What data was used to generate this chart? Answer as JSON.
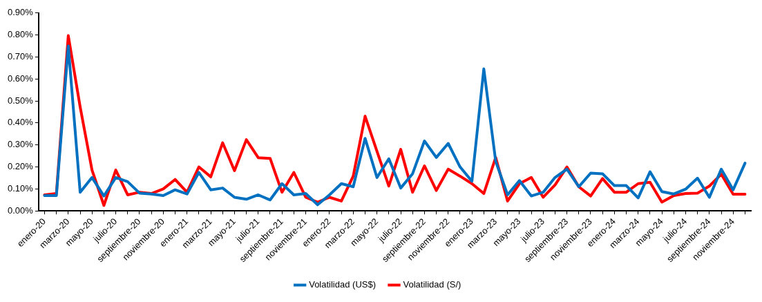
{
  "chart_data": {
    "type": "line",
    "categories": [
      "enero-20",
      null,
      "marzo-20",
      null,
      "mayo-20",
      null,
      "julio-20",
      null,
      "septiembre-20",
      null,
      "noviembre-20",
      null,
      "enero-21",
      null,
      "marzo-21",
      null,
      "mayo-21",
      null,
      "julio-21",
      null,
      "septiembre-21",
      null,
      "noviembre-21",
      null,
      "enero-22",
      null,
      "marzo-22",
      null,
      "mayo-22",
      null,
      "julio-22",
      null,
      "septiembre-22",
      null,
      "noviembre-22",
      null,
      "enero-23",
      null,
      "marzo-23",
      null,
      "mayo-23",
      null,
      "julio-23",
      null,
      "septiembre-23",
      null,
      "noviembre-23",
      null,
      "enero-24",
      null,
      "marzo-24",
      null,
      "mayo-24",
      null,
      "julio-24",
      null,
      "septiembre-24",
      null,
      "noviembre-24",
      null
    ],
    "series": [
      {
        "name": "Volatilidad (US$)",
        "color": "#0070c0",
        "values": [
          0.07,
          0.07,
          0.75,
          0.085,
          0.152,
          0.068,
          0.152,
          0.133,
          0.081,
          0.077,
          0.07,
          0.096,
          0.077,
          0.175,
          0.096,
          0.104,
          0.062,
          0.053,
          0.073,
          0.05,
          0.124,
          0.073,
          0.079,
          0.028,
          0.073,
          0.124,
          0.11,
          0.33,
          0.152,
          0.237,
          0.104,
          0.169,
          0.318,
          0.243,
          0.307,
          0.2,
          0.135,
          0.646,
          0.226,
          0.073,
          0.138,
          0.068,
          0.085,
          0.152,
          0.19,
          0.11,
          0.172,
          0.169,
          0.115,
          0.115,
          0.059,
          0.178,
          0.088,
          0.077,
          0.099,
          0.149,
          0.062,
          0.19,
          0.096,
          0.217
        ]
      },
      {
        "name": "Volatilidad (S/)",
        "color": "#ff0000",
        "values": [
          0.073,
          0.079,
          0.797,
          0.473,
          0.186,
          0.025,
          0.186,
          0.073,
          0.085,
          0.079,
          0.1,
          0.143,
          0.085,
          0.2,
          0.155,
          0.31,
          0.183,
          0.324,
          0.242,
          0.239,
          0.085,
          0.175,
          0.062,
          0.04,
          0.062,
          0.045,
          0.158,
          0.431,
          0.271,
          0.113,
          0.28,
          0.085,
          0.205,
          0.093,
          0.19,
          0.158,
          0.124,
          0.079,
          0.243,
          0.045,
          0.124,
          0.152,
          0.062,
          0.118,
          0.2,
          0.11,
          0.068,
          0.147,
          0.085,
          0.085,
          0.124,
          0.13,
          0.04,
          0.07,
          0.079,
          0.081,
          0.113,
          0.167,
          0.076,
          0.076
        ]
      }
    ],
    "ylim": [
      0,
      0.9
    ],
    "yticks": [
      {
        "value": 0,
        "label": "0.00%"
      },
      {
        "value": 0.1,
        "label": "0.10%"
      },
      {
        "value": 0.2,
        "label": "0.20%"
      },
      {
        "value": 0.3,
        "label": "0.30%"
      },
      {
        "value": 0.4,
        "label": "0.40%"
      },
      {
        "value": 0.5,
        "label": "0.50%"
      },
      {
        "value": 0.6,
        "label": "0.60%"
      },
      {
        "value": 0.7,
        "label": "0.70%"
      },
      {
        "value": 0.8,
        "label": "0.80%"
      },
      {
        "value": 0.9,
        "label": "0.90%"
      }
    ],
    "grid": false,
    "legend": "bottom",
    "marker": "none",
    "line_style": "solid"
  }
}
